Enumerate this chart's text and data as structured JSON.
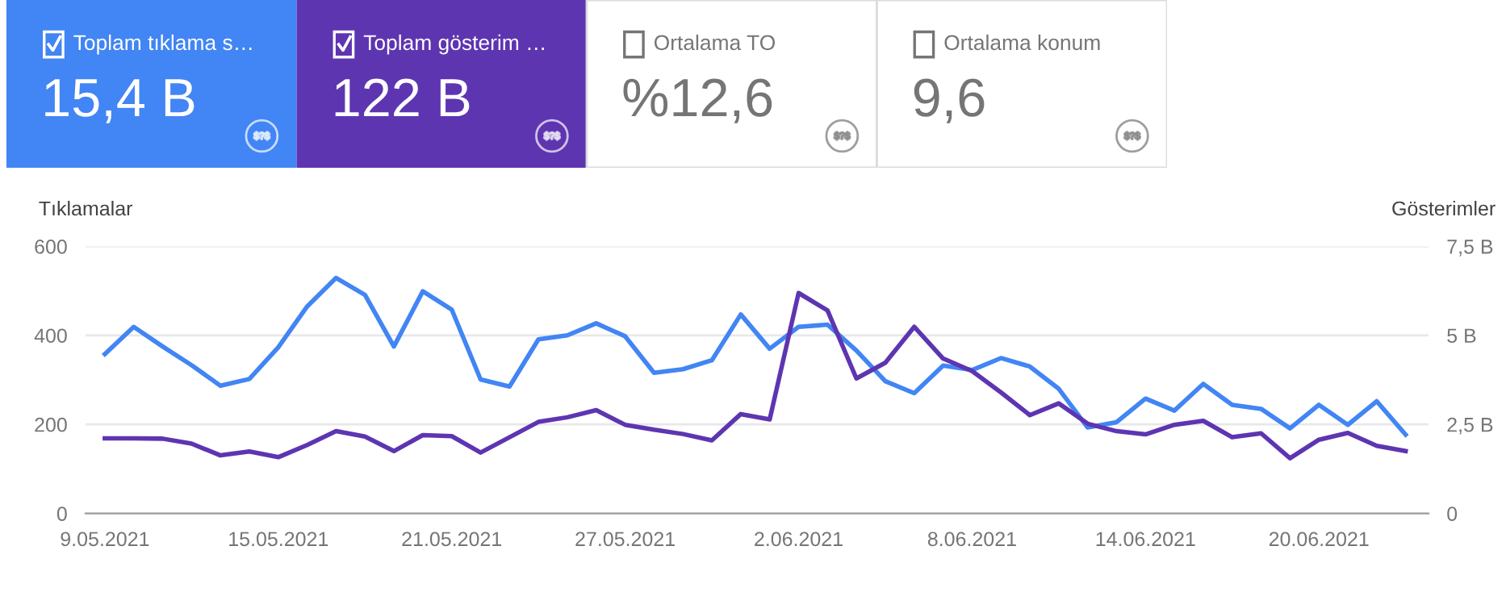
{
  "chart_data": [
    {
      "type": "other",
      "annotations": [
        "Toplam tıklama s…",
        "15,4 B",
        "Toplam gösterim …",
        "122 B",
        "Ortalama TO",
        "%12,6",
        "Ortalama konum",
        "9,6"
      ],
      "colors": [
        "#4285f4",
        "#5e35b1",
        "#ffffff",
        "#ffffff"
      ]
    },
    {
      "type": "line",
      "ylabel": "Tıklamalar",
      "y2label": "Gösterimler",
      "x": [
        "2021-05-09",
        "2021-05-10",
        "2021-05-11",
        "2021-05-12",
        "2021-05-13",
        "2021-05-14",
        "2021-05-15",
        "2021-05-16",
        "2021-05-17",
        "2021-05-18",
        "2021-05-19",
        "2021-05-20",
        "2021-05-21",
        "2021-05-22",
        "2021-05-23",
        "2021-05-24",
        "2021-05-25",
        "2021-05-26",
        "2021-05-27",
        "2021-05-28",
        "2021-05-29",
        "2021-05-30",
        "2021-05-31",
        "2021-06-01",
        "2021-06-02",
        "2021-06-03",
        "2021-06-04",
        "2021-06-05",
        "2021-06-06",
        "2021-06-07",
        "2021-06-08",
        "2021-06-09",
        "2021-06-10",
        "2021-06-11",
        "2021-06-12",
        "2021-06-13",
        "2021-06-14",
        "2021-06-15",
        "2021-06-16",
        "2021-06-17",
        "2021-06-18",
        "2021-06-19",
        "2021-06-20",
        "2021-06-21",
        "2021-06-22",
        "2021-06-23"
      ],
      "series": [
        {
          "color": "#4285f4",
          "values": [
            358,
            419,
            375,
            333,
            287,
            302,
            373,
            465,
            529,
            491,
            375,
            499,
            458,
            301,
            285,
            391,
            400,
            427,
            398,
            316,
            324,
            344,
            447,
            370,
            419,
            424,
            366,
            297,
            270,
            332,
            322,
            349,
            330,
            280,
            193,
            205,
            258,
            231,
            291,
            244,
            235,
            191,
            244,
            199,
            252,
            177
          ]
        },
        {
          "color": "#5e35b1",
          "axis": "y2",
          "values": [
            2.11,
            2.11,
            2.1,
            1.96,
            1.63,
            1.74,
            1.58,
            1.92,
            2.31,
            2.16,
            1.75,
            2.2,
            2.17,
            1.71,
            2.14,
            2.57,
            2.7,
            2.9,
            2.49,
            2.35,
            2.23,
            2.05,
            2.79,
            2.64,
            6.19,
            5.7,
            3.79,
            4.23,
            5.24,
            4.35,
            4.0,
            3.4,
            2.76,
            3.09,
            2.52,
            2.31,
            2.22,
            2.49,
            2.6,
            2.14,
            2.25,
            1.55,
            2.07,
            2.26,
            1.9,
            1.75
          ]
        }
      ],
      "xlim": [
        "2021-05-08T08:00",
        "2021-06-23T19:00"
      ],
      "xticks": [
        {
          "value": "2021-05-09",
          "label": "9.05.2021"
        },
        {
          "value": "2021-05-15",
          "label": "15.05.2021"
        },
        {
          "value": "2021-05-21",
          "label": "21.05.2021"
        },
        {
          "value": "2021-05-27",
          "label": "27.05.2021"
        },
        {
          "value": "2021-06-02",
          "label": "2.06.2021"
        },
        {
          "value": "2021-06-08",
          "label": "8.06.2021"
        },
        {
          "value": "2021-06-14",
          "label": "14.06.2021"
        },
        {
          "value": "2021-06-20",
          "label": "20.06.2021"
        }
      ],
      "ylim": [
        0,
        600
      ],
      "yticks": [
        0,
        200,
        400,
        600
      ],
      "y2lim": [
        0,
        7.5
      ],
      "y2ticks": [
        0,
        {
          "value": 2.5,
          "label": "2,5 B"
        },
        {
          "value": 5,
          "label": "5 B"
        },
        {
          "value": 7.5,
          "label": "7,5 B"
        }
      ],
      "grid": "y",
      "legend": false,
      "marker": "none",
      "line_style": "solid"
    }
  ]
}
